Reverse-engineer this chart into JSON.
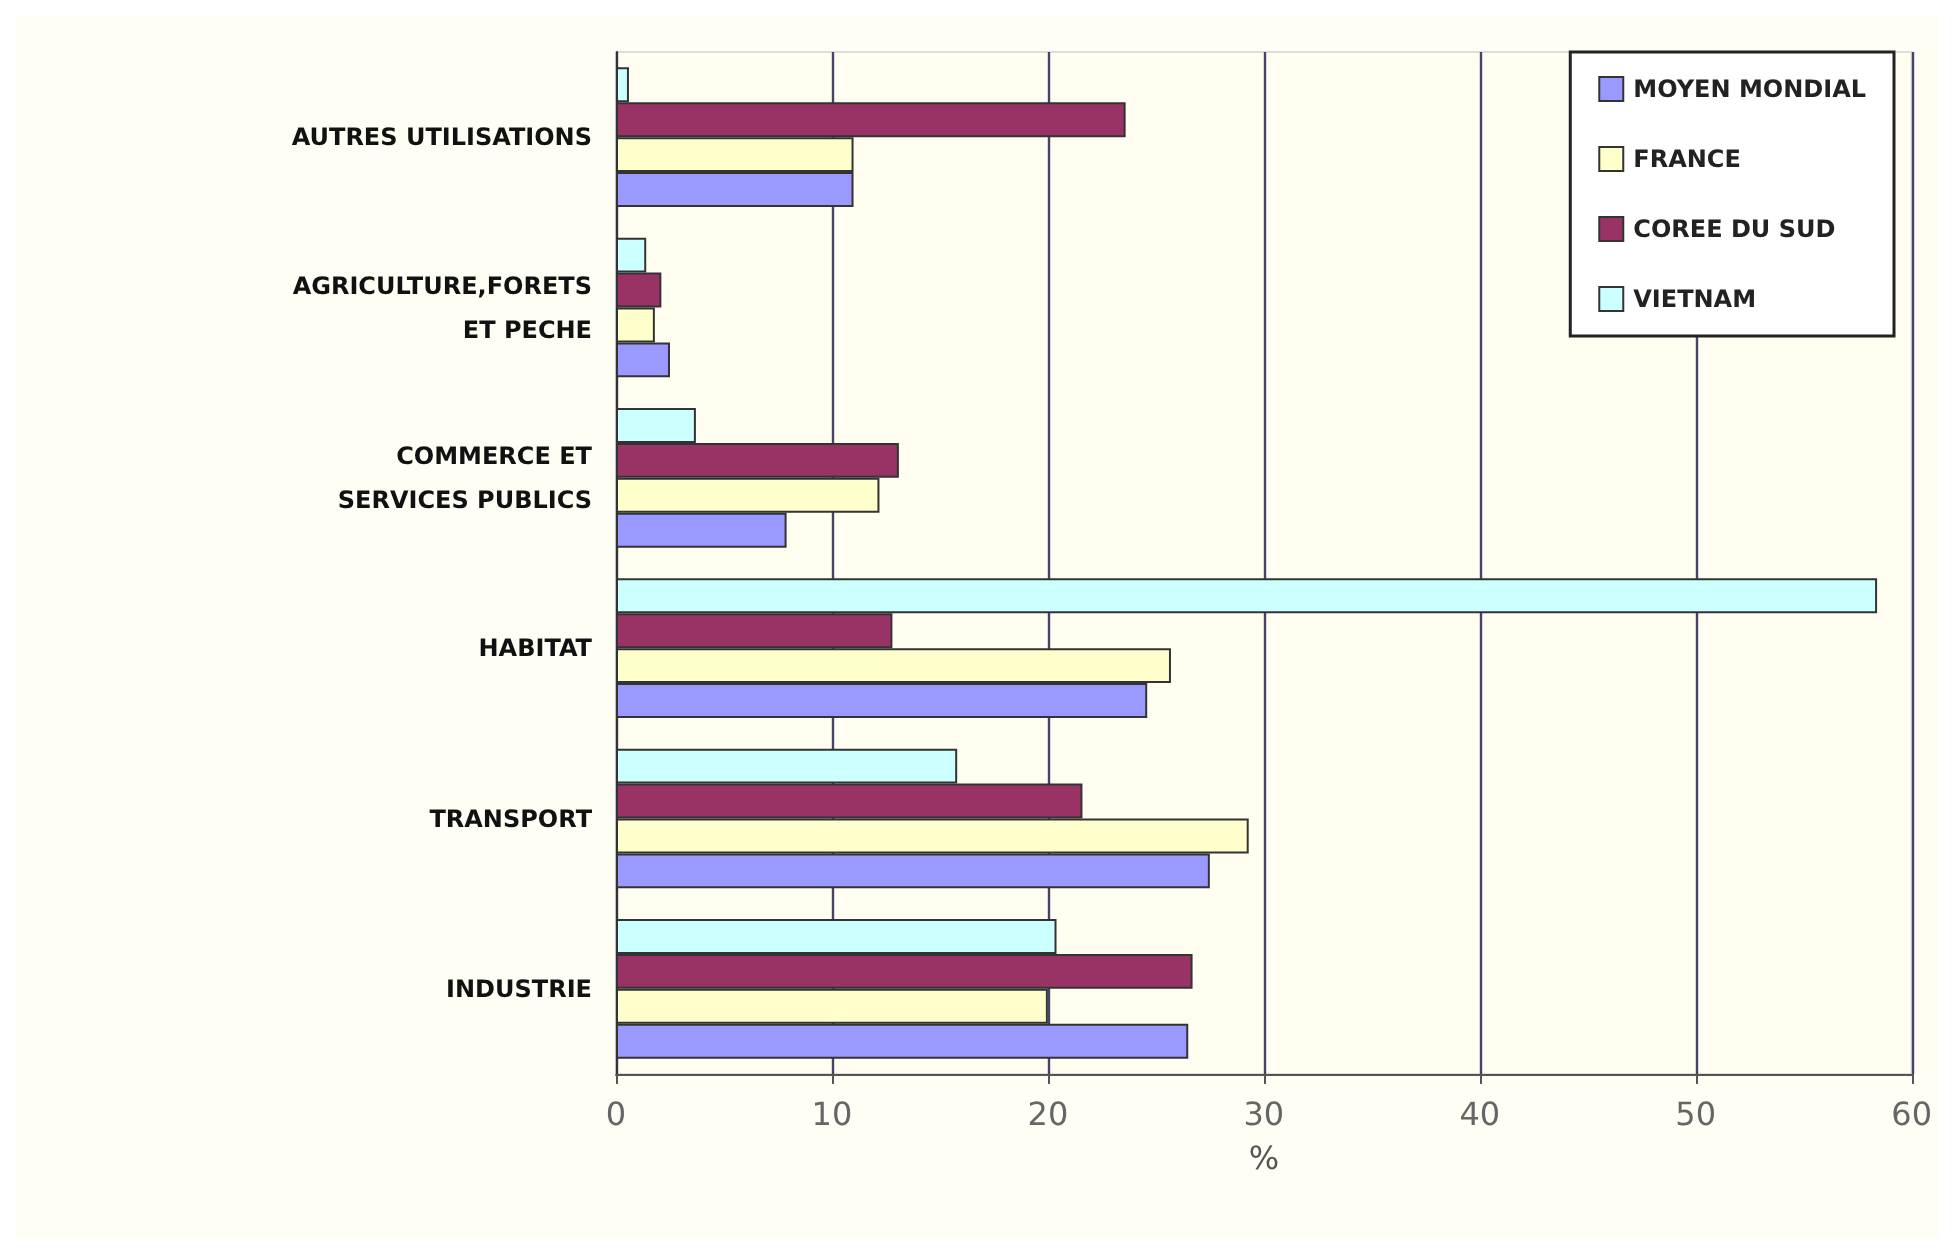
{
  "chart_data": {
    "type": "bar",
    "orientation": "horizontal",
    "xlabel": "%",
    "categories": [
      "AUTRES UTILISATIONS",
      "AGRICULTURE,FORETS\nET PECHE",
      "COMMERCE ET\nSERVICES PUBLICS",
      "HABITAT",
      "TRANSPORT",
      "INDUSTRIE"
    ],
    "series": [
      {
        "name": "MOYEN MONDIAL",
        "color": "#9999ff",
        "values": [
          11,
          2.5,
          7.9,
          24.6,
          27.5,
          26.5
        ]
      },
      {
        "name": "FRANCE",
        "color": "#ffffcc",
        "values": [
          11,
          1.8,
          12.2,
          25.7,
          29.3,
          20
        ]
      },
      {
        "name": "COREE DU SUD",
        "color": "#993366",
        "values": [
          23.6,
          2.1,
          13.1,
          12.8,
          21.6,
          26.7
        ]
      },
      {
        "name": "VIETNAM",
        "color": "#ccffff",
        "values": [
          0.6,
          1.4,
          3.7,
          58.4,
          15.8,
          20.4
        ]
      }
    ],
    "xlim": [
      0,
      60
    ],
    "xticks": [
      0,
      10,
      20,
      30,
      40,
      50,
      60
    ],
    "grid": "x",
    "legend": "top right"
  }
}
